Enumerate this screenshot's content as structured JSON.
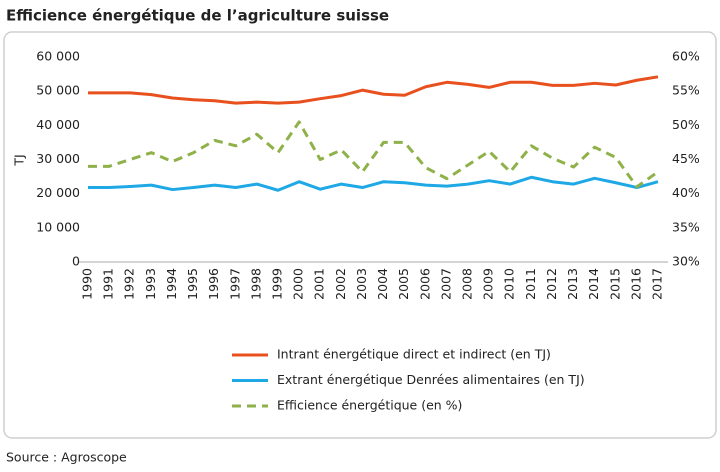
{
  "chart_data": {
    "type": "line",
    "title": "Efficience énergétique de l’agriculture suisse",
    "y_label": "TJ",
    "source": "Source : Agroscope",
    "categories": [
      "1990",
      "1991",
      "1992",
      "1993",
      "1994",
      "1995",
      "1996",
      "1997",
      "1998",
      "1999",
      "2000",
      "2001",
      "2002",
      "2003",
      "2004",
      "2005",
      "2006",
      "2007",
      "2008",
      "2009",
      "2010",
      "2011",
      "2012",
      "2013",
      "2014",
      "2015",
      "2016",
      "2017"
    ],
    "series": [
      {
        "name": "Intrant énergétique direct et indirect (en TJ)",
        "color": "#e8501e",
        "dash": false,
        "values": [
          49500,
          49500,
          49500,
          49000,
          48000,
          47500,
          47200,
          46500,
          46800,
          46500,
          46800,
          47800,
          48700,
          50300,
          49100,
          48800,
          51300,
          52600,
          52000,
          51100,
          52600,
          52600,
          51700,
          51700,
          52300,
          51800,
          53200,
          54200
        ]
      },
      {
        "name": "Extrant énergétique Denrées alimentaires (en TJ)",
        "color": "#1fa8e6",
        "dash": false,
        "values": [
          21800,
          21800,
          22100,
          22500,
          21200,
          21800,
          22500,
          21800,
          22800,
          21000,
          23500,
          21300,
          22800,
          21800,
          23500,
          23200,
          22500,
          22200,
          22800,
          23800,
          22800,
          24800,
          23500,
          22800,
          24500,
          23200,
          21800,
          23500
        ]
      },
      {
        "name": "Efficience énergétique (en %)",
        "color": "#8fb14a",
        "dash": true,
        "axis": "y2",
        "values": [
          44,
          44,
          45,
          46,
          44.7,
          46,
          47.8,
          47,
          48.7,
          46,
          50.5,
          45,
          46.4,
          43.2,
          47.5,
          47.5,
          43.8,
          42.2,
          44.2,
          46.2,
          43.2,
          47,
          45.2,
          43.9,
          46.8,
          45.3,
          41,
          43.2
        ]
      }
    ],
    "ylim": [
      0,
      60000
    ],
    "yticks": [
      0,
      {
        "value": 10000,
        "label": "10 000"
      },
      {
        "value": 20000,
        "label": "20 000"
      },
      {
        "value": 30000,
        "label": "30 000"
      },
      {
        "value": 40000,
        "label": "40 000"
      },
      {
        "value": 50000,
        "label": "50 000"
      },
      {
        "value": 60000,
        "label": "60 000"
      }
    ],
    "y2lim": [
      30,
      60
    ],
    "y2ticks": [
      {
        "value": 30,
        "label": "30%"
      },
      {
        "value": 35,
        "label": "35%"
      },
      {
        "value": 40,
        "label": "40%"
      },
      {
        "value": 45,
        "label": "45%"
      },
      {
        "value": 50,
        "label": "50%"
      },
      {
        "value": 55,
        "label": "55%"
      },
      {
        "value": 60,
        "label": "60%"
      }
    ],
    "grid": false
  }
}
